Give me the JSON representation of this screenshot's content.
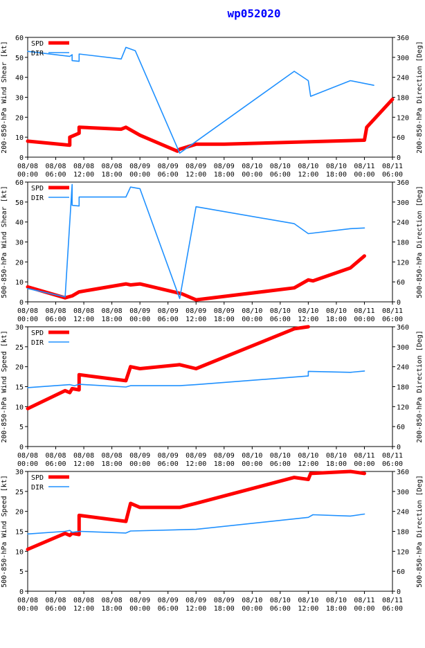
{
  "page": {
    "title": "wp052020"
  },
  "x_axis_ticks": [
    [
      "08/08",
      "00:00"
    ],
    [
      "08/08",
      "06:00"
    ],
    [
      "08/08",
      "12:00"
    ],
    [
      "08/08",
      "18:00"
    ],
    [
      "08/09",
      "00:00"
    ],
    [
      "08/09",
      "06:00"
    ],
    [
      "08/09",
      "12:00"
    ],
    [
      "08/09",
      "18:00"
    ],
    [
      "08/10",
      "00:00"
    ],
    [
      "08/10",
      "06:00"
    ],
    [
      "08/10",
      "12:00"
    ],
    [
      "08/10",
      "18:00"
    ],
    [
      "08/11",
      "00:00"
    ],
    [
      "08/11",
      "06:00"
    ]
  ],
  "legend": {
    "spd_label": "SPD",
    "dir_label": "DIR"
  },
  "colors": {
    "spd": "#ff0000",
    "dir": "#1e90ff",
    "title": "#0000ff",
    "axis": "#000000"
  },
  "chart_data": [
    {
      "type": "line",
      "ylabel": "200-850-hPa Wind Shear [kt]",
      "y2label": "200-850-hPa Direction [Deg]",
      "ylim": [
        0,
        60
      ],
      "yticks": [
        0,
        10,
        20,
        30,
        40,
        50,
        60
      ],
      "y2lim": [
        0,
        360
      ],
      "y2ticks": [
        0,
        60,
        120,
        180,
        240,
        300,
        360
      ],
      "xlim_hours": [
        0,
        78
      ],
      "legend_position": "top-left",
      "series": [
        {
          "key": "SPD",
          "axis": "left",
          "x": [
            0,
            9,
            9,
            11,
            11,
            20,
            21,
            24,
            32,
            32.5,
            36,
            36.5,
            42,
            72,
            72.5,
            78
          ],
          "y": [
            8,
            6,
            10,
            12,
            15,
            14,
            15,
            11,
            3,
            4,
            6.5,
            6.5,
            6.5,
            8.5,
            15,
            29
          ]
        },
        {
          "key": "DIR",
          "axis": "right",
          "x": [
            0,
            9,
            9.5,
            9.5,
            11,
            11,
            20,
            21,
            23,
            32.5,
            57,
            60,
            60.5,
            69,
            74
          ],
          "y": [
            318,
            303,
            308,
            290,
            288,
            310,
            295,
            330,
            320,
            12,
            258,
            230,
            183,
            230,
            216
          ]
        }
      ]
    },
    {
      "type": "line",
      "ylabel": "500-850-hPa Wind Shear [kt]",
      "y2label": "500-850-hPa Direction [Deg]",
      "ylim": [
        0,
        60
      ],
      "yticks": [
        0,
        10,
        20,
        30,
        40,
        50,
        60
      ],
      "y2lim": [
        0,
        360
      ],
      "y2ticks": [
        0,
        60,
        120,
        180,
        240,
        300,
        360
      ],
      "xlim_hours": [
        0,
        78
      ],
      "legend_position": "top-left",
      "series": [
        {
          "key": "SPD",
          "axis": "left",
          "x": [
            0,
            8,
            9.5,
            11,
            21,
            22,
            24,
            33,
            36,
            57,
            60,
            61,
            69,
            72
          ],
          "y": [
            7.5,
            2,
            3,
            5,
            9,
            8.5,
            9,
            4,
            1,
            7,
            11,
            10.5,
            17,
            23
          ]
        },
        {
          "key": "DIR",
          "axis": "right",
          "x": [
            0,
            8,
            9.5,
            9.5,
            11,
            11,
            21,
            22,
            24,
            32.5,
            36,
            57,
            60,
            69,
            72
          ],
          "y": [
            40,
            15,
            353,
            290,
            288,
            315,
            315,
            345,
            340,
            10,
            286,
            235,
            205,
            220,
            222
          ]
        }
      ]
    },
    {
      "type": "line",
      "ylabel": "200-850-hPa Wind Speed [kt]",
      "y2label": "200-850-hPa Direction [Deg]",
      "ylim": [
        0,
        30
      ],
      "yticks": [
        0,
        5,
        10,
        15,
        20,
        25,
        30
      ],
      "y2lim": [
        0,
        360
      ],
      "y2ticks": [
        0,
        60,
        120,
        180,
        240,
        300,
        360
      ],
      "xlim_hours": [
        0,
        78
      ],
      "legend_position": "top-left",
      "series": [
        {
          "key": "SPD",
          "axis": "left",
          "x": [
            0,
            8,
            9,
            9.5,
            11,
            11,
            21,
            22,
            24,
            32.5,
            36,
            57,
            60
          ],
          "y": [
            9.5,
            14,
            13.5,
            14.5,
            14.2,
            18,
            16.5,
            20,
            19.5,
            20.5,
            19.5,
            29.5,
            30
          ]
        },
        {
          "key": "DIR",
          "axis": "right",
          "x": [
            0,
            9,
            10,
            11,
            21,
            22,
            32.5,
            36,
            60,
            60,
            69,
            72
          ],
          "y": [
            177,
            186,
            183,
            187,
            179,
            183,
            183,
            186,
            212,
            226,
            223,
            227
          ]
        }
      ]
    },
    {
      "type": "line",
      "ylabel": "500-850-hPa Wind Speed [kt]",
      "y2label": "500-850-hPa Direction [Deg]",
      "ylim": [
        0,
        30
      ],
      "yticks": [
        0,
        5,
        10,
        15,
        20,
        25,
        30
      ],
      "y2lim": [
        0,
        360
      ],
      "y2ticks": [
        0,
        60,
        120,
        180,
        240,
        300,
        360
      ],
      "xlim_hours": [
        0,
        78
      ],
      "legend_position": "top-left",
      "series": [
        {
          "key": "SPD",
          "axis": "left",
          "x": [
            0,
            8,
            9,
            9.5,
            11,
            11,
            21,
            22,
            24,
            32.5,
            36,
            57,
            60,
            60.5,
            69,
            72
          ],
          "y": [
            10.5,
            14.5,
            14,
            14.5,
            14.2,
            19,
            17.5,
            22,
            21,
            21,
            22,
            28.5,
            28,
            29.5,
            30,
            29.5
          ]
        },
        {
          "key": "DIR",
          "axis": "right",
          "x": [
            0,
            8,
            9,
            9.5,
            11,
            21,
            22,
            36,
            60,
            61,
            69,
            72
          ],
          "y": [
            172,
            180,
            183,
            177,
            180,
            175,
            181,
            186,
            222,
            230,
            226,
            232
          ]
        }
      ]
    }
  ]
}
